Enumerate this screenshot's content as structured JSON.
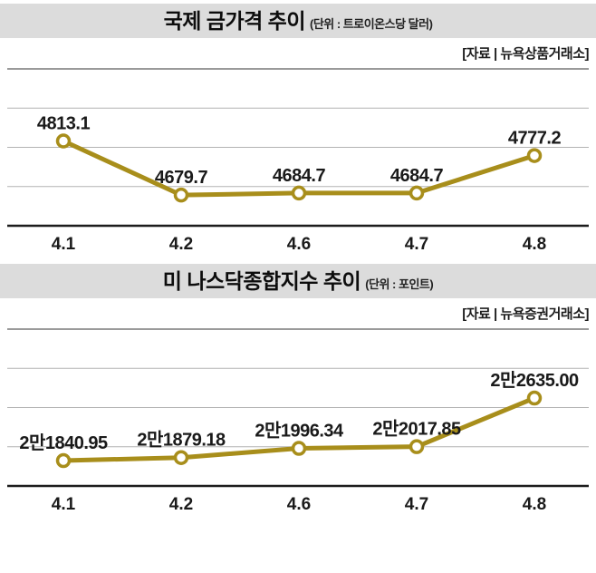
{
  "colors": {
    "band_bg": "#dcdcdc",
    "line": "#a88e1b",
    "marker_fill": "#ffffff",
    "grid": "#b3b3b3",
    "top_rule": "#9a9a9a",
    "axis": "#1c1c1c",
    "text": "#1a1a1a"
  },
  "chart_data": [
    {
      "type": "line",
      "title": "국제 금가격 추이",
      "unit_label": "(단위 : 트로이온스당 달러)",
      "source": "[자료 | 뉴욕상품거래소]",
      "xlabel": "",
      "ylabel": "트로이온스당 달러",
      "categories": [
        "4.1",
        "4.2",
        "4.6",
        "4.7",
        "4.8"
      ],
      "values": [
        4813.1,
        4679.7,
        4684.7,
        4684.7,
        4777.2
      ],
      "point_labels": [
        "4813.1",
        "4679.7",
        "4684.7",
        "4684.7",
        "4777.2"
      ],
      "ylim": [
        4604,
        4991
      ],
      "grid": true,
      "legend": "none",
      "line_color": "#a88e1b"
    },
    {
      "type": "line",
      "title": "미 나스닥종합지수 추이",
      "unit_label": "(단위 : 포인트)",
      "source": "[자료 | 뉴욕증권거래소]",
      "xlabel": "",
      "ylabel": "포인트",
      "categories": [
        "4.1",
        "4.2",
        "4.6",
        "4.7",
        "4.8"
      ],
      "values": [
        21840.95,
        21879.18,
        21996.34,
        22017.85,
        22635.0
      ],
      "point_labels": [
        "2만1840.95",
        "2만1879.18",
        "2만1996.34",
        "2만2017.85",
        "2만2635.00"
      ],
      "ylim": [
        21519,
        23510
      ],
      "grid": true,
      "legend": "none",
      "line_color": "#a88e1b"
    }
  ]
}
